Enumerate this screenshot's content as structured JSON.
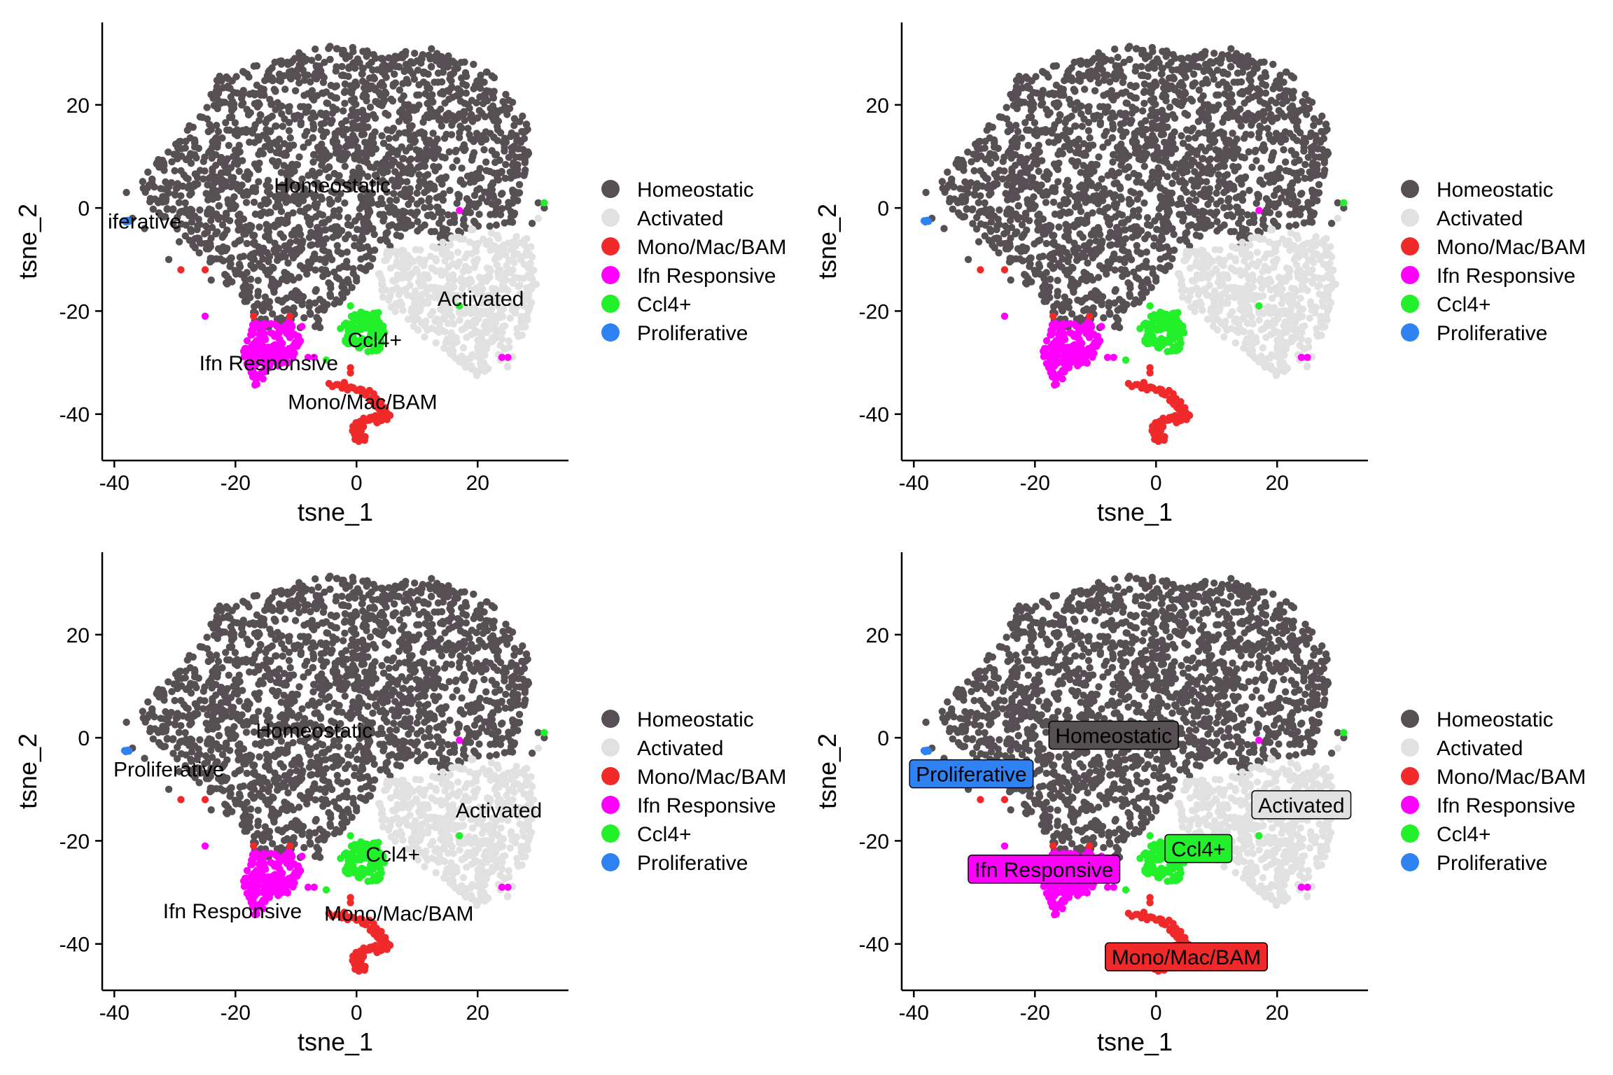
{
  "legend_colors": {
    "Homeostatic": "#564f53",
    "Activated": "#e1e1e1",
    "Mono/Mac/BAM": "#f02a2a",
    "Ifn Responsive": "#ff00ff",
    "Ccl4+": "#22f02a",
    "Proliferative": "#2f82f2"
  },
  "chart_data": [
    {
      "type": "scatter",
      "panel": "top-left",
      "xlabel": "tsne_1",
      "ylabel": "tsne_2",
      "xlim": [
        -42,
        35
      ],
      "ylim": [
        -49,
        36
      ],
      "xticks": [
        "-40",
        "-20",
        "0",
        "20"
      ],
      "yticks": [
        "20",
        "0",
        "-20",
        "-40"
      ],
      "legend": [
        "Homeostatic",
        "Activated",
        "Mono/Mac/BAM",
        "Ifn Responsive",
        "Ccl4+",
        "Proliferative"
      ],
      "label_style": "plain",
      "labels": [
        {
          "text": "Homeostatic",
          "x": -4,
          "y": 4.5
        },
        {
          "text": "iferative",
          "x": -35,
          "y": -2.5
        },
        {
          "text": "Activated",
          "x": 20.5,
          "y": -17.5
        },
        {
          "text": "Ccl4+",
          "x": 3,
          "y": -25.5
        },
        {
          "text": "Ifn Responsive",
          "x": -14.5,
          "y": -30
        },
        {
          "text": "Mono/Mac/BAM",
          "x": 1,
          "y": -37.5
        }
      ]
    },
    {
      "type": "scatter",
      "panel": "top-right",
      "xlabel": "tsne_1",
      "ylabel": "tsne_2",
      "xlim": [
        -42,
        35
      ],
      "ylim": [
        -49,
        36
      ],
      "xticks": [
        "-40",
        "-20",
        "0",
        "20"
      ],
      "yticks": [
        "20",
        "0",
        "-20",
        "-40"
      ],
      "legend": [
        "Homeostatic",
        "Activated",
        "Mono/Mac/BAM",
        "Ifn Responsive",
        "Ccl4+",
        "Proliferative"
      ],
      "label_style": "none",
      "labels": []
    },
    {
      "type": "scatter",
      "panel": "bottom-left",
      "xlabel": "tsne_1",
      "ylabel": "tsne_2",
      "xlim": [
        -42,
        35
      ],
      "ylim": [
        -49,
        36
      ],
      "xticks": [
        "-40",
        "-20",
        "0",
        "20"
      ],
      "yticks": [
        "20",
        "0",
        "-20",
        "-40"
      ],
      "legend": [
        "Homeostatic",
        "Activated",
        "Mono/Mac/BAM",
        "Ifn Responsive",
        "Ccl4+",
        "Proliferative"
      ],
      "label_style": "plain",
      "labels": [
        {
          "text": "Homeostatic",
          "x": -7,
          "y": 1.5
        },
        {
          "text": "Proliferative",
          "x": -31,
          "y": -6
        },
        {
          "text": "Activated",
          "x": 23.5,
          "y": -14
        },
        {
          "text": "Ccl4+",
          "x": 6,
          "y": -22.5
        },
        {
          "text": "Ifn Responsive",
          "x": -20.5,
          "y": -33.5
        },
        {
          "text": "Mono/Mac/BAM",
          "x": 7,
          "y": -34
        }
      ]
    },
    {
      "type": "scatter",
      "panel": "bottom-right",
      "xlabel": "tsne_1",
      "ylabel": "tsne_2",
      "xlim": [
        -42,
        35
      ],
      "ylim": [
        -49,
        36
      ],
      "xticks": [
        "-40",
        "-20",
        "0",
        "20"
      ],
      "yticks": [
        "20",
        "0",
        "-20",
        "-40"
      ],
      "legend": [
        "Homeostatic",
        "Activated",
        "Mono/Mac/BAM",
        "Ifn Responsive",
        "Ccl4+",
        "Proliferative"
      ],
      "label_style": "boxed",
      "labels": [
        {
          "text": "Homeostatic",
          "x": -7,
          "y": 0.5,
          "cluster": "Homeostatic"
        },
        {
          "text": "Proliferative",
          "x": -30.5,
          "y": -7,
          "cluster": "Proliferative"
        },
        {
          "text": "Activated",
          "x": 24,
          "y": -13,
          "cluster": "Activated"
        },
        {
          "text": "Ccl4+",
          "x": 7,
          "y": -21.5,
          "cluster": "Ccl4+"
        },
        {
          "text": "Ifn Responsive",
          "x": -18.5,
          "y": -25.5,
          "cluster": "Ifn Responsive"
        },
        {
          "text": "Mono/Mac/BAM",
          "x": 5,
          "y": -42.5,
          "cluster": "Mono/Mac/BAM"
        }
      ]
    }
  ]
}
